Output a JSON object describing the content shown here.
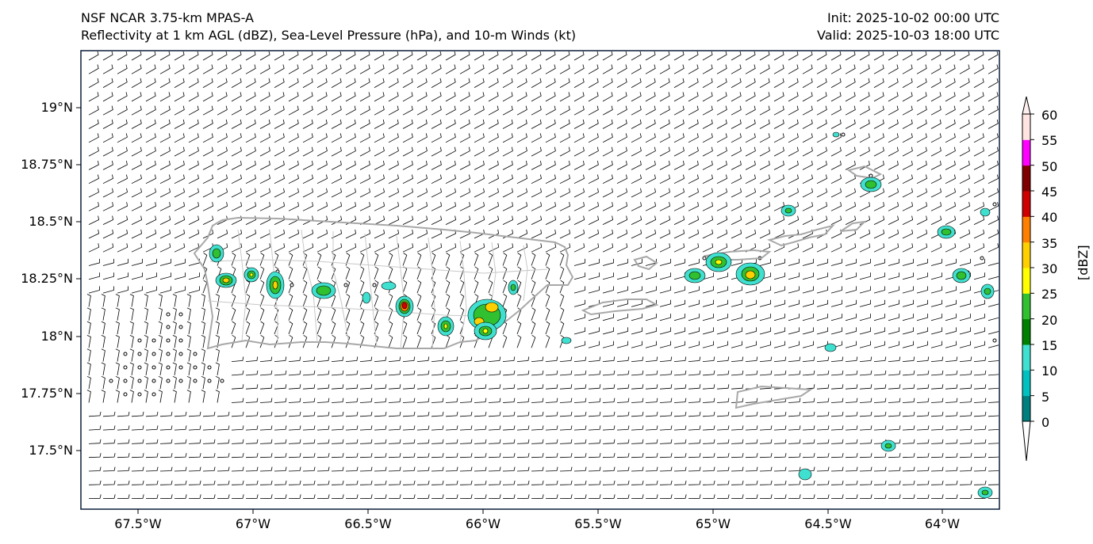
{
  "header": {
    "left_line1": "NSF NCAR 3.75-km MPAS-A",
    "left_line2": "Reflectivity at 1 km AGL (dBZ), Sea-Level Pressure (hPa), and 10-m Winds (kt)",
    "right_line1": "Init: 2025-10-02 00:00 UTC",
    "right_line2": "Valid: 2025-10-03 18:00 UTC"
  },
  "axes": {
    "lat_labels": [
      "19°N",
      "18.75°N",
      "18.5°N",
      "18.25°N",
      "18°N",
      "17.75°N",
      "17.5°N"
    ],
    "lon_labels": [
      "67.5°W",
      "67°W",
      "66.5°W",
      "66°W",
      "65.5°W",
      "65°W",
      "64.5°W",
      "64°W"
    ]
  },
  "colorbar": {
    "label": "[dBZ]",
    "ticks": [
      "0",
      "5",
      "10",
      "15",
      "20",
      "25",
      "30",
      "35",
      "40",
      "45",
      "50",
      "55",
      "60"
    ],
    "colors": [
      "#007f7f",
      "#00c0c0",
      "#40e0d0",
      "#008000",
      "#30c030",
      "#ffff00",
      "#ffd000",
      "#ff8000",
      "#d00000",
      "#800000",
      "#ff00ff",
      "#ffe4e1"
    ],
    "under_color": "#ffffff",
    "over_color": "#ffeeee"
  },
  "colors": {
    "coast": "#a8a8a8",
    "barb": "#000000",
    "frame": "#0b1f3a"
  }
}
